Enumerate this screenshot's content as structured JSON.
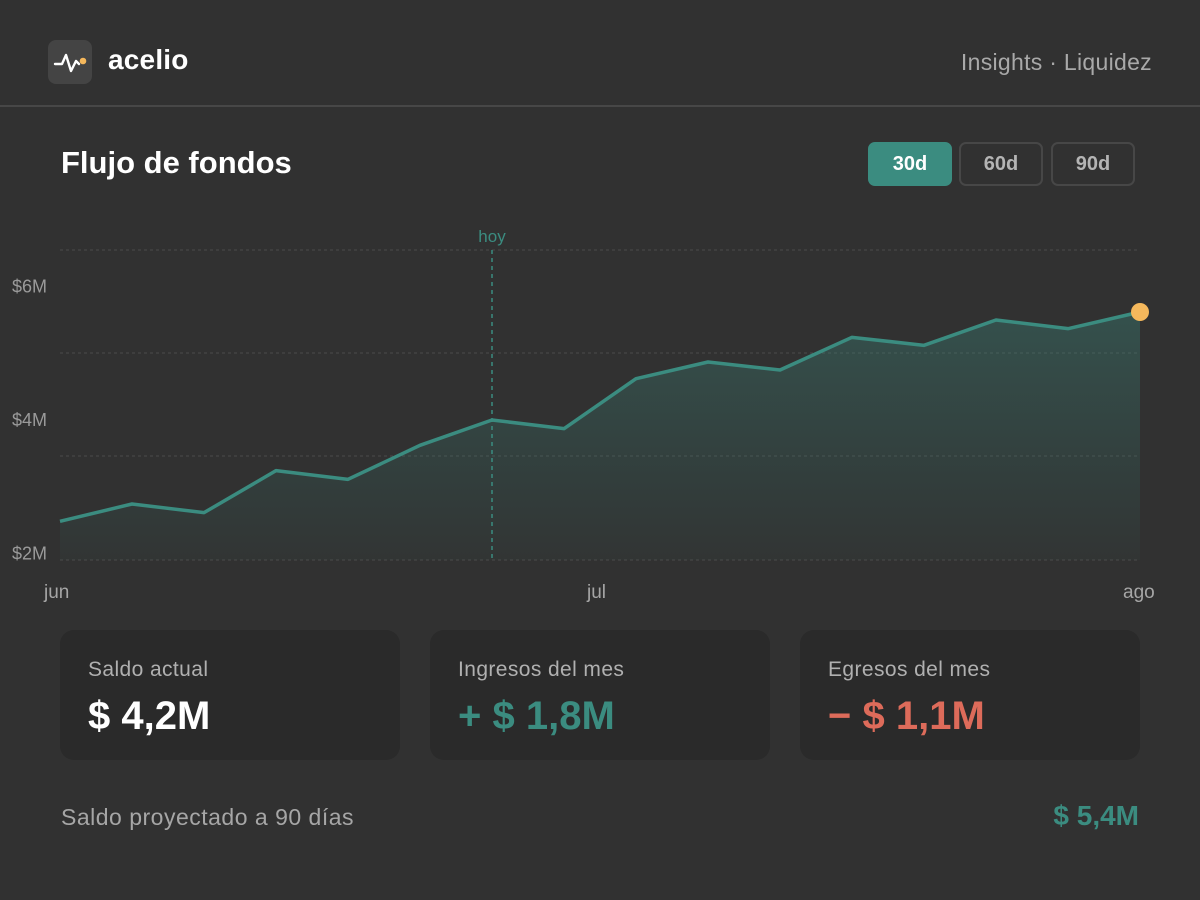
{
  "app": {
    "name": "acelio",
    "breadcrumb": "Insights · Liquidez",
    "logo_icon": "activity-pulse-icon"
  },
  "page": {
    "title": "Flujo de fondos"
  },
  "range_selector": {
    "options": [
      {
        "label": "30d",
        "active": true
      },
      {
        "label": "60d",
        "active": false
      },
      {
        "label": "90d",
        "active": false
      }
    ]
  },
  "colors": {
    "background": "#313131",
    "accent": "#3b8c80",
    "positive": "#3b8c80",
    "negative": "#dd6b5a",
    "highlight": "#f5b85c",
    "card": "#2a2a2a"
  },
  "chart_data": {
    "type": "area",
    "y_tick_labels": [
      "$6M",
      "$4M",
      "$2M"
    ],
    "x_tick_labels": [
      "jun",
      "jul",
      "ago"
    ],
    "ylim": [
      1.9,
      6.55
    ],
    "y_ticks": [
      6,
      4,
      2
    ],
    "values": [
      2.48,
      2.74,
      2.61,
      3.24,
      3.11,
      3.62,
      4.0,
      3.87,
      4.62,
      4.87,
      4.75,
      5.24,
      5.12,
      5.5,
      5.37,
      5.62
    ],
    "today_label": "hoy",
    "today_index": 6,
    "grid": true,
    "last_point_highlighted": true
  },
  "cards": [
    {
      "label": "Saldo actual",
      "value": "$ 4,2M",
      "tone": "neutral"
    },
    {
      "label": "Ingresos del mes",
      "value": "+ $ 1,8M",
      "tone": "positive"
    },
    {
      "label": "Egresos del mes",
      "value": "− $ 1,1M",
      "tone": "negative"
    }
  ],
  "projection": {
    "label": "Saldo proyectado a 90 días",
    "value": "$ 5,4M"
  }
}
